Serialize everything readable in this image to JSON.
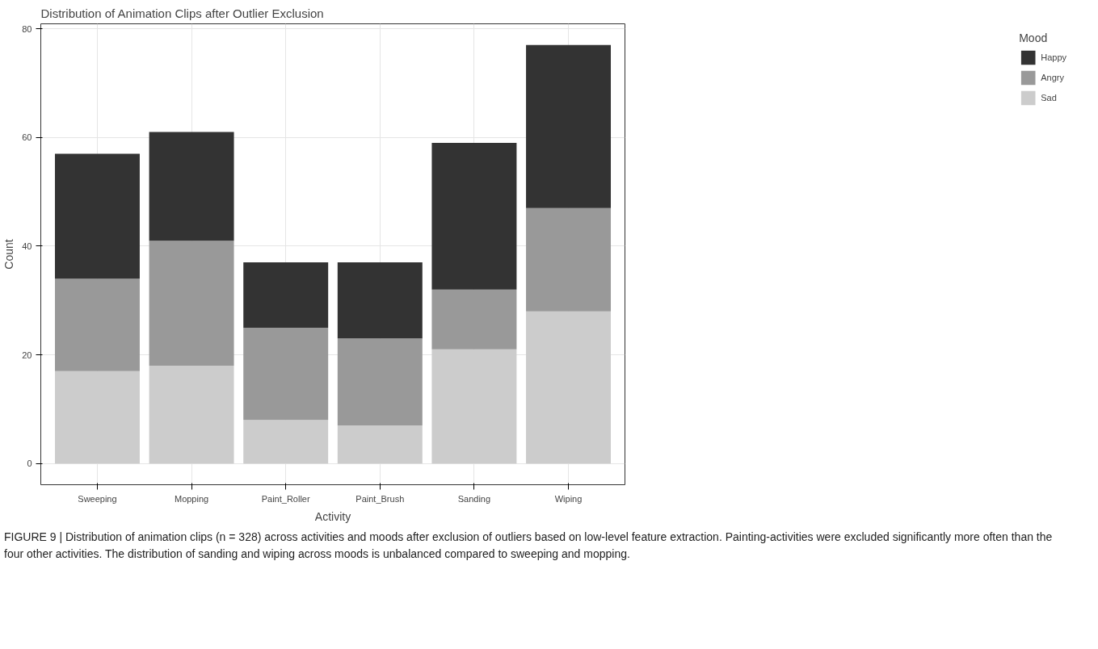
{
  "chart_data": {
    "type": "bar",
    "title": "Distribution of Animation Clips after Outlier Exclusion",
    "xlabel": "Activity",
    "ylabel": "Count",
    "legend_title": "Mood",
    "categories": [
      "Sweeping",
      "Mopping",
      "Paint_Roller",
      "Paint_Brush",
      "Sanding",
      "Wiping"
    ],
    "stacked": true,
    "series": [
      {
        "name": "Sad",
        "color": "#cccccc",
        "values": [
          17,
          18,
          8,
          7,
          21,
          28
        ]
      },
      {
        "name": "Angry",
        "color": "#999999",
        "values": [
          17,
          23,
          17,
          16,
          11,
          19
        ]
      },
      {
        "name": "Happy",
        "color": "#333333",
        "values": [
          23,
          20,
          12,
          14,
          27,
          30
        ]
      }
    ],
    "ylim": [
      -3.9,
      80.9
    ],
    "yticks": [
      0,
      20,
      40,
      60,
      80
    ],
    "grid": true,
    "legend": "right",
    "annotations": [
      "FIGURE 9 | Distribution of animation clips (n = 328) across activities and moods after exclusion of outliers based on low-level feature extraction. Painting-activities were excluded significantly more often than the four other activities. The distribution of sanding and wiping across moods is unbalanced compared to sweeping and mopping."
    ]
  }
}
